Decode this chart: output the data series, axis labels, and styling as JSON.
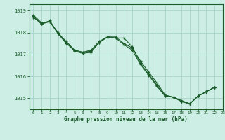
{
  "title": "Graphe pression niveau de la mer (hPa)",
  "bg_color": "#cceee4",
  "grid_color": "#aad4c8",
  "line_color": "#1a5c2a",
  "xlim": [
    -0.5,
    23
  ],
  "ylim": [
    1014.5,
    1019.3
  ],
  "yticks": [
    1015,
    1016,
    1017,
    1018,
    1019
  ],
  "xticks": [
    0,
    1,
    2,
    3,
    4,
    5,
    6,
    7,
    8,
    9,
    10,
    11,
    12,
    13,
    14,
    15,
    16,
    17,
    18,
    19,
    20,
    21,
    22,
    23
  ],
  "line1": [
    [
      0,
      1018.8
    ],
    [
      1,
      1018.45
    ],
    [
      2,
      1018.5
    ],
    [
      3,
      1018.0
    ],
    [
      4,
      1017.55
    ],
    [
      5,
      1017.15
    ],
    [
      6,
      1017.05
    ],
    [
      7,
      1017.1
    ],
    [
      8,
      1017.55
    ],
    [
      9,
      1017.8
    ],
    [
      10,
      1017.75
    ],
    [
      11,
      1017.75
    ],
    [
      12,
      1017.35
    ],
    [
      13,
      1016.6
    ],
    [
      14,
      1016.1
    ],
    [
      15,
      1015.6
    ],
    [
      16,
      1015.1
    ],
    [
      17,
      1015.05
    ],
    [
      18,
      1014.9
    ],
    [
      19,
      1014.75
    ],
    [
      20,
      1015.1
    ],
    [
      21,
      1015.3
    ],
    [
      22,
      1015.5
    ]
  ],
  "line2": [
    [
      0,
      1018.7
    ],
    [
      1,
      1018.4
    ],
    [
      2,
      1018.55
    ],
    [
      3,
      1017.95
    ],
    [
      4,
      1017.5
    ],
    [
      5,
      1017.2
    ],
    [
      6,
      1017.1
    ],
    [
      7,
      1017.15
    ],
    [
      8,
      1017.55
    ],
    [
      9,
      1017.8
    ],
    [
      10,
      1017.75
    ],
    [
      11,
      1017.45
    ],
    [
      12,
      1017.2
    ],
    [
      13,
      1016.55
    ],
    [
      14,
      1016.05
    ],
    [
      15,
      1015.55
    ],
    [
      16,
      1015.1
    ],
    [
      17,
      1015.05
    ],
    [
      18,
      1014.85
    ],
    [
      19,
      1014.75
    ],
    [
      20,
      1015.1
    ],
    [
      21,
      1015.3
    ],
    [
      22,
      1015.5
    ]
  ],
  "line3": [
    [
      0,
      1018.75
    ],
    [
      1,
      1018.4
    ],
    [
      2,
      1018.5
    ],
    [
      3,
      1017.95
    ],
    [
      4,
      1017.6
    ],
    [
      5,
      1017.2
    ],
    [
      6,
      1017.1
    ],
    [
      7,
      1017.2
    ],
    [
      8,
      1017.6
    ],
    [
      9,
      1017.8
    ],
    [
      10,
      1017.8
    ],
    [
      11,
      1017.5
    ],
    [
      12,
      1017.3
    ],
    [
      13,
      1016.7
    ],
    [
      14,
      1016.2
    ],
    [
      15,
      1015.7
    ],
    [
      16,
      1015.15
    ],
    [
      17,
      1015.05
    ],
    [
      18,
      1014.85
    ],
    [
      19,
      1014.75
    ],
    [
      20,
      1015.1
    ],
    [
      21,
      1015.3
    ],
    [
      22,
      1015.5
    ]
  ]
}
